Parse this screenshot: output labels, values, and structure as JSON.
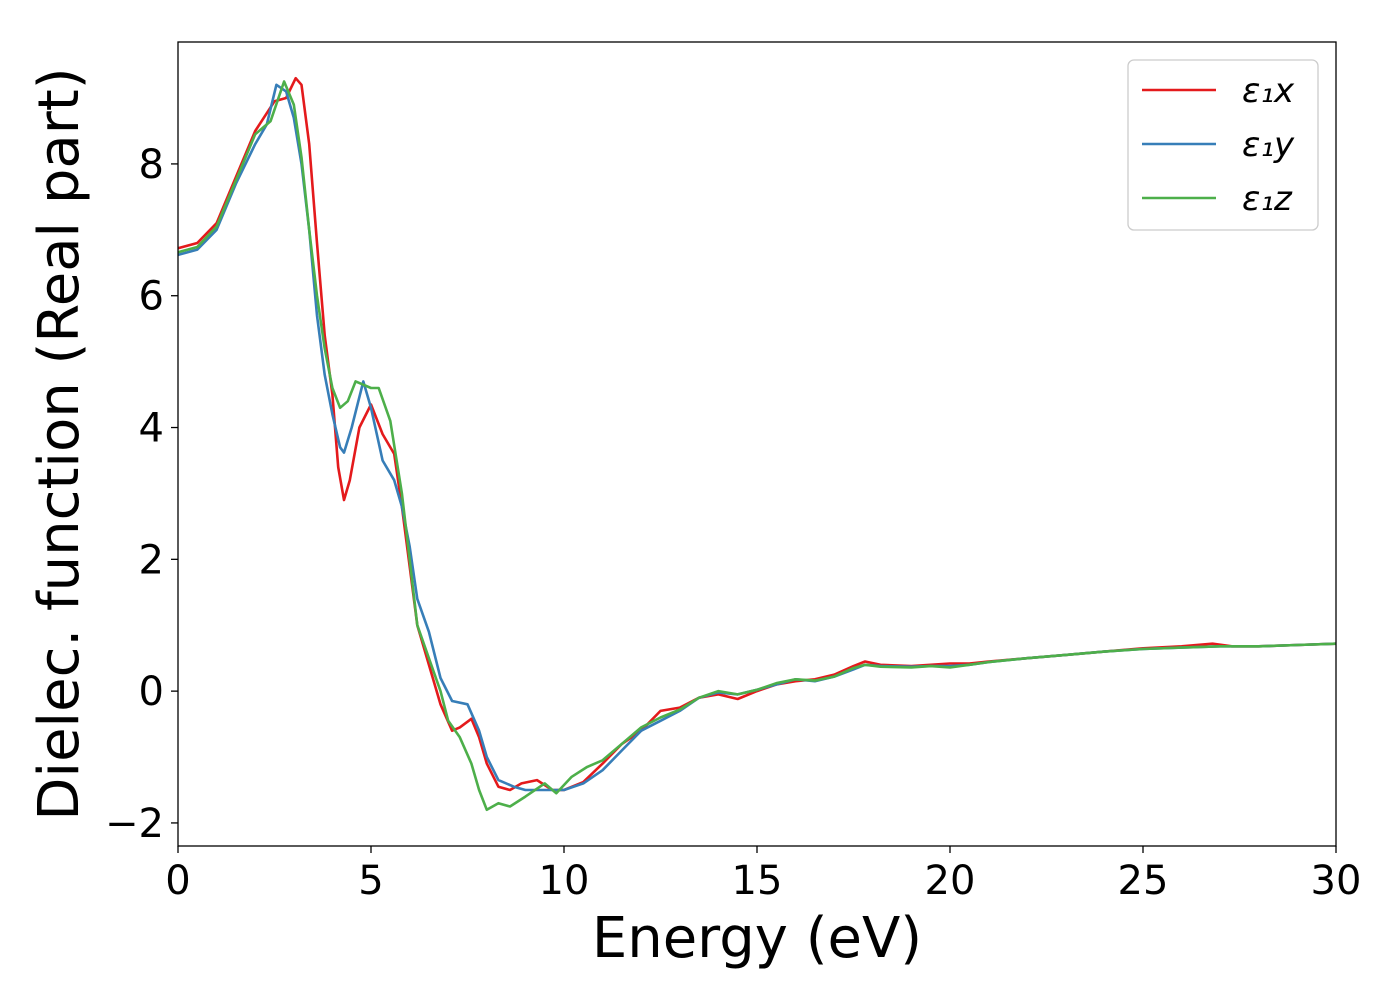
{
  "chart_data": {
    "type": "line",
    "title": "",
    "xlabel": "Energy (eV)",
    "ylabel": "Dielec. function (Real part)",
    "xlim": [
      0,
      30
    ],
    "ylim": [
      -2.35,
      9.85
    ],
    "xticks": [
      0,
      5,
      10,
      15,
      20,
      25,
      30
    ],
    "xtick_labels": [
      "0",
      "5",
      "10",
      "15",
      "20",
      "25",
      "30"
    ],
    "yticks": [
      -2,
      0,
      2,
      4,
      6,
      8
    ],
    "ytick_labels": [
      "−2",
      "0",
      "2",
      "4",
      "6",
      "8"
    ],
    "grid": false,
    "legend_position": "top-right",
    "series": [
      {
        "name": "ε₁x",
        "color": "#e41a1c",
        "points": [
          [
            0,
            6.72
          ],
          [
            0.5,
            6.8
          ],
          [
            1,
            7.1
          ],
          [
            1.5,
            7.8
          ],
          [
            2,
            8.5
          ],
          [
            2.5,
            8.95
          ],
          [
            2.8,
            9.0
          ],
          [
            3.05,
            9.3
          ],
          [
            3.2,
            9.2
          ],
          [
            3.4,
            8.3
          ],
          [
            3.6,
            6.8
          ],
          [
            3.8,
            5.4
          ],
          [
            4.0,
            4.5
          ],
          [
            4.15,
            3.4
          ],
          [
            4.3,
            2.9
          ],
          [
            4.45,
            3.2
          ],
          [
            4.7,
            4.0
          ],
          [
            5.0,
            4.35
          ],
          [
            5.3,
            3.9
          ],
          [
            5.6,
            3.6
          ],
          [
            5.8,
            2.8
          ],
          [
            6.0,
            1.9
          ],
          [
            6.2,
            1.0
          ],
          [
            6.5,
            0.4
          ],
          [
            6.8,
            -0.2
          ],
          [
            7.1,
            -0.6
          ],
          [
            7.3,
            -0.55
          ],
          [
            7.6,
            -0.42
          ],
          [
            7.8,
            -0.7
          ],
          [
            8.0,
            -1.1
          ],
          [
            8.3,
            -1.45
          ],
          [
            8.6,
            -1.5
          ],
          [
            8.9,
            -1.4
          ],
          [
            9.3,
            -1.35
          ],
          [
            9.7,
            -1.5
          ],
          [
            10.0,
            -1.5
          ],
          [
            10.5,
            -1.38
          ],
          [
            11.0,
            -1.1
          ],
          [
            11.5,
            -0.8
          ],
          [
            12.0,
            -0.6
          ],
          [
            12.5,
            -0.3
          ],
          [
            13.0,
            -0.25
          ],
          [
            13.5,
            -0.1
          ],
          [
            14.0,
            -0.05
          ],
          [
            14.5,
            -0.12
          ],
          [
            15.0,
            0.0
          ],
          [
            15.5,
            0.1
          ],
          [
            16.0,
            0.15
          ],
          [
            16.5,
            0.18
          ],
          [
            17.0,
            0.25
          ],
          [
            17.5,
            0.38
          ],
          [
            17.8,
            0.45
          ],
          [
            18.2,
            0.4
          ],
          [
            19.0,
            0.38
          ],
          [
            19.5,
            0.4
          ],
          [
            20.0,
            0.42
          ],
          [
            20.5,
            0.42
          ],
          [
            21,
            0.45
          ],
          [
            22,
            0.5
          ],
          [
            23,
            0.55
          ],
          [
            24,
            0.6
          ],
          [
            25,
            0.65
          ],
          [
            26,
            0.68
          ],
          [
            26.8,
            0.72
          ],
          [
            27.3,
            0.68
          ],
          [
            28,
            0.68
          ],
          [
            29,
            0.7
          ],
          [
            30,
            0.72
          ]
        ]
      },
      {
        "name": "ε₁y",
        "color": "#377eb8",
        "points": [
          [
            0,
            6.62
          ],
          [
            0.5,
            6.7
          ],
          [
            1,
            7.0
          ],
          [
            1.5,
            7.7
          ],
          [
            2,
            8.3
          ],
          [
            2.3,
            8.6
          ],
          [
            2.55,
            9.2
          ],
          [
            2.8,
            9.1
          ],
          [
            3.0,
            8.7
          ],
          [
            3.2,
            8.0
          ],
          [
            3.4,
            7.0
          ],
          [
            3.6,
            5.7
          ],
          [
            3.8,
            4.8
          ],
          [
            4.0,
            4.2
          ],
          [
            4.2,
            3.7
          ],
          [
            4.3,
            3.62
          ],
          [
            4.5,
            4.0
          ],
          [
            4.8,
            4.7
          ],
          [
            5.0,
            4.3
          ],
          [
            5.3,
            3.5
          ],
          [
            5.6,
            3.2
          ],
          [
            5.8,
            2.8
          ],
          [
            6.0,
            2.2
          ],
          [
            6.2,
            1.4
          ],
          [
            6.5,
            0.9
          ],
          [
            6.8,
            0.2
          ],
          [
            7.1,
            -0.15
          ],
          [
            7.5,
            -0.2
          ],
          [
            7.8,
            -0.6
          ],
          [
            8.0,
            -1.0
          ],
          [
            8.3,
            -1.35
          ],
          [
            8.7,
            -1.45
          ],
          [
            9.0,
            -1.5
          ],
          [
            9.5,
            -1.5
          ],
          [
            10.0,
            -1.5
          ],
          [
            10.5,
            -1.4
          ],
          [
            11.0,
            -1.2
          ],
          [
            11.5,
            -0.9
          ],
          [
            12.0,
            -0.6
          ],
          [
            12.5,
            -0.45
          ],
          [
            13.0,
            -0.3
          ],
          [
            13.5,
            -0.1
          ],
          [
            14.0,
            -0.02
          ],
          [
            14.5,
            -0.05
          ],
          [
            15.0,
            0.02
          ],
          [
            15.5,
            0.1
          ],
          [
            16.0,
            0.18
          ],
          [
            16.5,
            0.15
          ],
          [
            17.0,
            0.22
          ],
          [
            17.5,
            0.33
          ],
          [
            17.8,
            0.4
          ],
          [
            18.2,
            0.38
          ],
          [
            19.0,
            0.37
          ],
          [
            19.5,
            0.38
          ],
          [
            20.0,
            0.38
          ],
          [
            20.5,
            0.4
          ],
          [
            21,
            0.44
          ],
          [
            22,
            0.5
          ],
          [
            23,
            0.55
          ],
          [
            24,
            0.6
          ],
          [
            25,
            0.64
          ],
          [
            26,
            0.66
          ],
          [
            27,
            0.68
          ],
          [
            28,
            0.68
          ],
          [
            29,
            0.7
          ],
          [
            30,
            0.72
          ]
        ]
      },
      {
        "name": "ε₁z",
        "color": "#4daf4a",
        "points": [
          [
            0,
            6.66
          ],
          [
            0.5,
            6.74
          ],
          [
            1,
            7.05
          ],
          [
            1.5,
            7.75
          ],
          [
            2,
            8.45
          ],
          [
            2.4,
            8.65
          ],
          [
            2.75,
            9.25
          ],
          [
            3.0,
            8.9
          ],
          [
            3.2,
            8.1
          ],
          [
            3.4,
            7.0
          ],
          [
            3.6,
            6.0
          ],
          [
            3.8,
            5.2
          ],
          [
            4.0,
            4.6
          ],
          [
            4.2,
            4.3
          ],
          [
            4.4,
            4.4
          ],
          [
            4.6,
            4.7
          ],
          [
            4.8,
            4.65
          ],
          [
            5.0,
            4.6
          ],
          [
            5.2,
            4.6
          ],
          [
            5.5,
            4.1
          ],
          [
            5.8,
            3.0
          ],
          [
            6.0,
            2.0
          ],
          [
            6.2,
            1.0
          ],
          [
            6.5,
            0.5
          ],
          [
            6.8,
            0.0
          ],
          [
            7.0,
            -0.45
          ],
          [
            7.3,
            -0.7
          ],
          [
            7.6,
            -1.1
          ],
          [
            7.8,
            -1.5
          ],
          [
            8.0,
            -1.8
          ],
          [
            8.3,
            -1.7
          ],
          [
            8.6,
            -1.75
          ],
          [
            9.0,
            -1.6
          ],
          [
            9.5,
            -1.4
          ],
          [
            9.8,
            -1.55
          ],
          [
            10.2,
            -1.3
          ],
          [
            10.6,
            -1.15
          ],
          [
            11.0,
            -1.05
          ],
          [
            11.5,
            -0.8
          ],
          [
            12.0,
            -0.55
          ],
          [
            12.5,
            -0.4
          ],
          [
            13.0,
            -0.28
          ],
          [
            13.5,
            -0.1
          ],
          [
            14.0,
            0.0
          ],
          [
            14.5,
            -0.05
          ],
          [
            15.0,
            0.02
          ],
          [
            15.5,
            0.12
          ],
          [
            16.0,
            0.18
          ],
          [
            16.5,
            0.16
          ],
          [
            17.0,
            0.22
          ],
          [
            17.5,
            0.35
          ],
          [
            17.8,
            0.4
          ],
          [
            18.2,
            0.37
          ],
          [
            19.0,
            0.36
          ],
          [
            19.5,
            0.38
          ],
          [
            20.0,
            0.36
          ],
          [
            20.5,
            0.4
          ],
          [
            21,
            0.44
          ],
          [
            22,
            0.5
          ],
          [
            23,
            0.55
          ],
          [
            24,
            0.6
          ],
          [
            25,
            0.64
          ],
          [
            26,
            0.66
          ],
          [
            27,
            0.68
          ],
          [
            28,
            0.68
          ],
          [
            29,
            0.7
          ],
          [
            30,
            0.72
          ]
        ]
      }
    ]
  }
}
